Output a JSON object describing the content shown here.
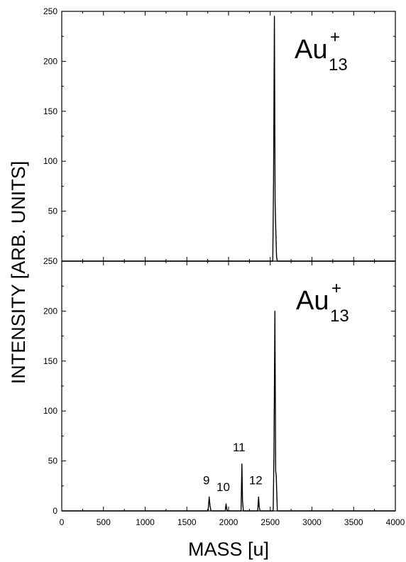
{
  "chart_data": [
    {
      "panel": "top",
      "type": "line",
      "xlabel": "MASS [u]",
      "ylabel": "INTENSITY [ARB. UNITS]",
      "xlim": [
        0,
        4000
      ],
      "ylim": [
        0,
        250
      ],
      "x_ticks": [
        "0",
        "500",
        "1000",
        "1500",
        "2000",
        "2500",
        "3000",
        "3500",
        "4000"
      ],
      "y_ticks": [
        "",
        "50",
        "100",
        "150",
        "200",
        "250"
      ],
      "species_label": {
        "base": "Au",
        "superscript": "+",
        "subscript": "13"
      },
      "series": [
        {
          "x": [
            0,
            2530,
            2540,
            2550,
            2558,
            2565,
            2575,
            2585,
            4000
          ],
          "y": [
            0,
            0,
            80,
            245,
            60,
            35,
            5,
            0,
            0
          ]
        }
      ],
      "peak_labels": [],
      "grid": false
    },
    {
      "panel": "bottom",
      "type": "line",
      "xlabel": "MASS [u]",
      "ylabel": "INTENSITY [ARB. UNITS]",
      "xlim": [
        0,
        4000
      ],
      "ylim": [
        0,
        250
      ],
      "x_ticks": [
        "0",
        "500",
        "1000",
        "1500",
        "2000",
        "2500",
        "3000",
        "3500",
        "4000"
      ],
      "y_ticks": [
        "0",
        "50",
        "100",
        "150",
        "200",
        "250"
      ],
      "species_label": {
        "base": "Au",
        "superscript": "+",
        "subscript": "13"
      },
      "series": [
        {
          "x": [
            0,
            1755,
            1768,
            1778,
            1790,
            1960,
            1970,
            1978,
            1986,
            2150,
            2160,
            2168,
            2178,
            2350,
            2360,
            2368,
            2378,
            2535,
            2545,
            2556,
            2565,
            2572,
            2585,
            4000
          ],
          "y": [
            0,
            0,
            14,
            5,
            0,
            0,
            7,
            2,
            0,
            0,
            47,
            10,
            0,
            0,
            14,
            4,
            0,
            0,
            60,
            200,
            40,
            35,
            0,
            0
          ]
        }
      ],
      "peak_labels": [
        {
          "text": "9",
          "x": 1768,
          "y": 14
        },
        {
          "text": "10",
          "x": 1970,
          "y": 7
        },
        {
          "text": "11",
          "x": 2160,
          "y": 47
        },
        {
          "text": "12",
          "x": 2360,
          "y": 14
        }
      ],
      "grid": false
    }
  ]
}
